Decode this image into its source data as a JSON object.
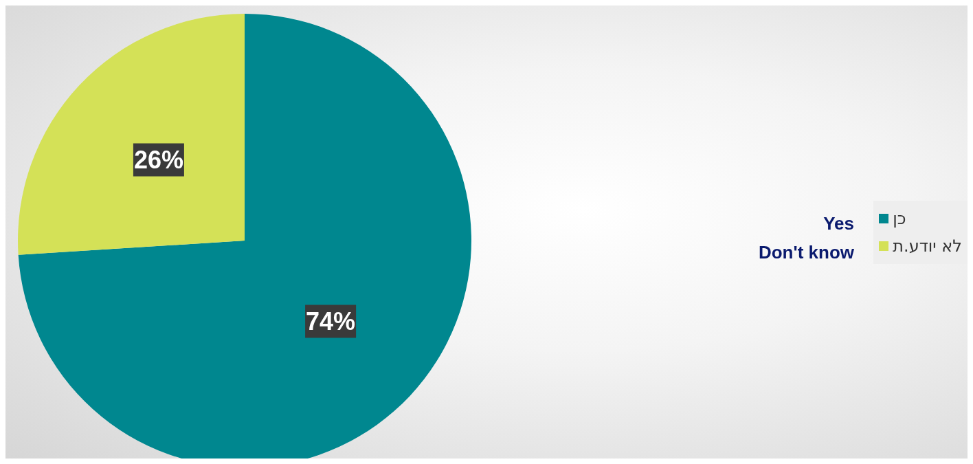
{
  "chart_data": {
    "type": "pie",
    "categories": [
      "כן",
      "לא יודע.ת"
    ],
    "values": [
      74,
      26
    ],
    "colors": [
      "#00878f",
      "#d4e157"
    ],
    "value_labels": [
      "74%",
      "26%"
    ],
    "legend": "right",
    "annotations": [
      "Yes",
      "Don't know"
    ]
  }
}
